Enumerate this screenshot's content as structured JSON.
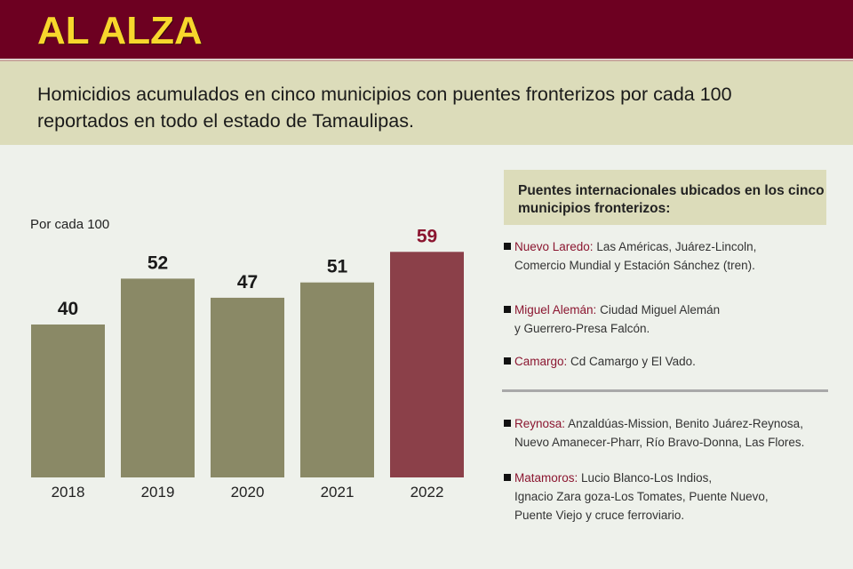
{
  "header": {
    "title": "AL ALZA"
  },
  "subtitle": "Homicidios acumulados en cinco municipios con puentes fronterizos por cada 100 reportados en todo el estado de Tamaulipas.",
  "chart_data": {
    "type": "bar",
    "title": "AL ALZA",
    "ylabel": "Por cada 100",
    "categories": [
      "2018",
      "2019",
      "2020",
      "2021",
      "2022"
    ],
    "values": [
      40,
      52,
      47,
      51,
      59
    ],
    "ylim": [
      0,
      60
    ],
    "colors": {
      "default": "#8a8966",
      "highlight": "#8b4049",
      "highlight_label": "#8b1630"
    },
    "highlight_index": 4
  },
  "panel": {
    "title": "Puentes internacionales ubicados en los cinco municipios fronterizos:",
    "items": [
      {
        "name": "Nuevo Laredo:",
        "line1": "Las Américas, Juárez-Lincoln,",
        "line2": "Comercio Mundial y Estación Sánchez (tren)."
      },
      {
        "name": "Miguel Alemán:",
        "line1": "Ciudad  Miguel Alemán",
        "line2": "y Guerrero-Presa Falcón."
      },
      {
        "name": "Camargo:",
        "line1": "Cd Camargo y El Vado.",
        "line2": ""
      },
      {
        "name": "Reynosa:",
        "line1": "Anzaldúas-Mission, Benito Juárez-Reynosa,",
        "line2": "Nuevo Amanecer-Pharr, Río Bravo-Donna, Las Flores."
      },
      {
        "name": "Matamoros:",
        "line1": "Lucio Blanco-Los Indios,",
        "line2": "Ignacio Zara goza-Los Tomates, Puente Nuevo,",
        "line3": "Puente Viejo y cruce  ferroviario."
      }
    ]
  }
}
